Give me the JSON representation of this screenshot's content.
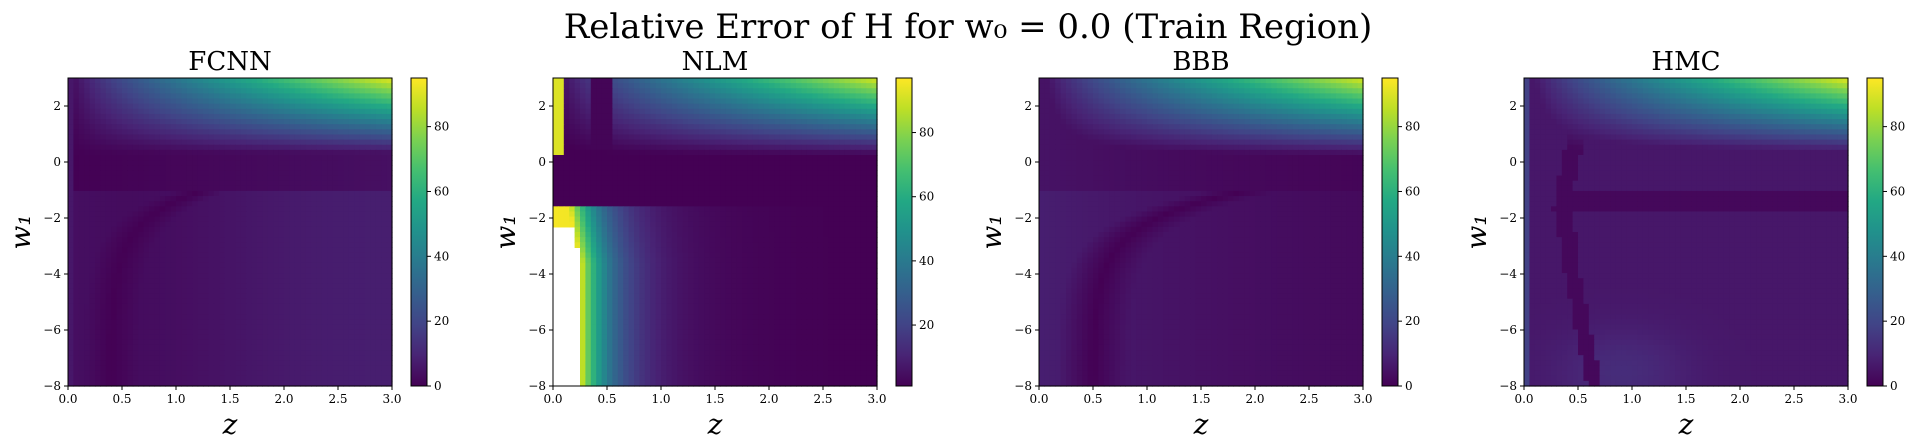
{
  "figure": {
    "title": "Relative Error of H for w₀ = 0.0 (Train Region)"
  },
  "chart_data": [
    {
      "type": "heatmap",
      "title": "FCNN",
      "xlabel": "z",
      "ylabel": "w₁",
      "xlim": [
        0.0,
        3.0
      ],
      "ylim": [
        -8,
        3
      ],
      "xticks": [
        "0.0",
        "0.5",
        "1.0",
        "1.5",
        "2.0",
        "2.5",
        "3.0"
      ],
      "yticks": [
        "−8",
        "−6",
        "−4",
        "−2",
        "0",
        "2"
      ],
      "colorbar": {
        "range": [
          0,
          95
        ],
        "ticks": [
          "0",
          "20",
          "40",
          "60",
          "80"
        ],
        "colormap": "viridis"
      },
      "pattern": "fcnn"
    },
    {
      "type": "heatmap",
      "title": "NLM",
      "xlabel": "z",
      "ylabel": "w₁",
      "xlim": [
        0.0,
        3.0
      ],
      "ylim": [
        -8,
        3
      ],
      "xticks": [
        "0.0",
        "0.5",
        "1.0",
        "1.5",
        "2.0",
        "2.5",
        "3.0"
      ],
      "yticks": [
        "−8",
        "−6",
        "−4",
        "−2",
        "0",
        "2"
      ],
      "colorbar": {
        "range": [
          1,
          97
        ],
        "ticks": [
          "20",
          "40",
          "60",
          "80"
        ],
        "colormap": "viridis"
      },
      "pattern": "nlm"
    },
    {
      "type": "heatmap",
      "title": "BBB",
      "xlabel": "z",
      "ylabel": "w₁",
      "xlim": [
        0.0,
        3.0
      ],
      "ylim": [
        -8,
        3
      ],
      "xticks": [
        "0.0",
        "0.5",
        "1.0",
        "1.5",
        "2.0",
        "2.5",
        "3.0"
      ],
      "yticks": [
        "−8",
        "−6",
        "−4",
        "−2",
        "0",
        "2"
      ],
      "colorbar": {
        "range": [
          0,
          95
        ],
        "ticks": [
          "0",
          "20",
          "40",
          "60",
          "80"
        ],
        "colormap": "viridis"
      },
      "pattern": "bbb"
    },
    {
      "type": "heatmap",
      "title": "HMC",
      "xlabel": "z",
      "ylabel": "w₁",
      "xlim": [
        0.0,
        3.0
      ],
      "ylim": [
        -8,
        3
      ],
      "xticks": [
        "0.0",
        "0.5",
        "1.0",
        "1.5",
        "2.0",
        "2.5",
        "3.0"
      ],
      "yticks": [
        "−8",
        "−6",
        "−4",
        "−2",
        "0",
        "2"
      ],
      "colorbar": {
        "range": [
          0,
          95
        ],
        "ticks": [
          "0",
          "20",
          "40",
          "60",
          "80"
        ],
        "colormap": "viridis"
      },
      "pattern": "hmc"
    }
  ]
}
